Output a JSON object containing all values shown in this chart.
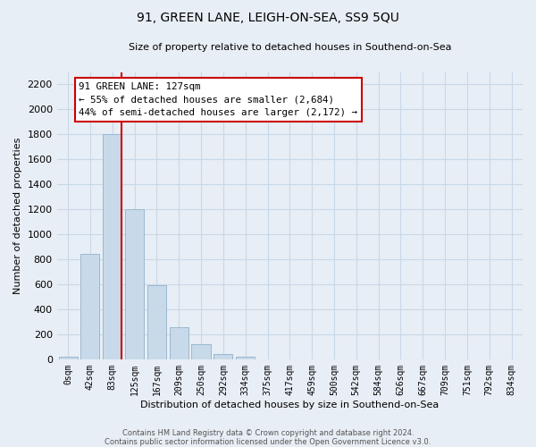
{
  "title": "91, GREEN LANE, LEIGH-ON-SEA, SS9 5QU",
  "subtitle": "Size of property relative to detached houses in Southend-on-Sea",
  "xlabel": "Distribution of detached houses by size in Southend-on-Sea",
  "ylabel": "Number of detached properties",
  "footnote1": "Contains HM Land Registry data © Crown copyright and database right 2024.",
  "footnote2": "Contains public sector information licensed under the Open Government Licence v3.0.",
  "bar_labels": [
    "0sqm",
    "42sqm",
    "83sqm",
    "125sqm",
    "167sqm",
    "209sqm",
    "250sqm",
    "292sqm",
    "334sqm",
    "375sqm",
    "417sqm",
    "459sqm",
    "500sqm",
    "542sqm",
    "584sqm",
    "626sqm",
    "667sqm",
    "709sqm",
    "751sqm",
    "792sqm",
    "834sqm"
  ],
  "bar_values": [
    20,
    840,
    1800,
    1200,
    590,
    255,
    120,
    40,
    20,
    0,
    0,
    0,
    0,
    0,
    0,
    0,
    0,
    0,
    0,
    0,
    0
  ],
  "bar_color": "#c8daea",
  "bar_edge_color": "#9ab8d0",
  "property_line_color": "#cc0000",
  "annotation_title": "91 GREEN LANE: 127sqm",
  "annotation_line1": "← 55% of detached houses are smaller (2,684)",
  "annotation_line2": "44% of semi-detached houses are larger (2,172) →",
  "ylim": [
    0,
    2300
  ],
  "yticks": [
    0,
    200,
    400,
    600,
    800,
    1000,
    1200,
    1400,
    1600,
    1800,
    2000,
    2200
  ],
  "grid_color": "#c8d8e8",
  "background_color": "#e8eef5",
  "figsize": [
    6.0,
    5.0
  ],
  "dpi": 100
}
